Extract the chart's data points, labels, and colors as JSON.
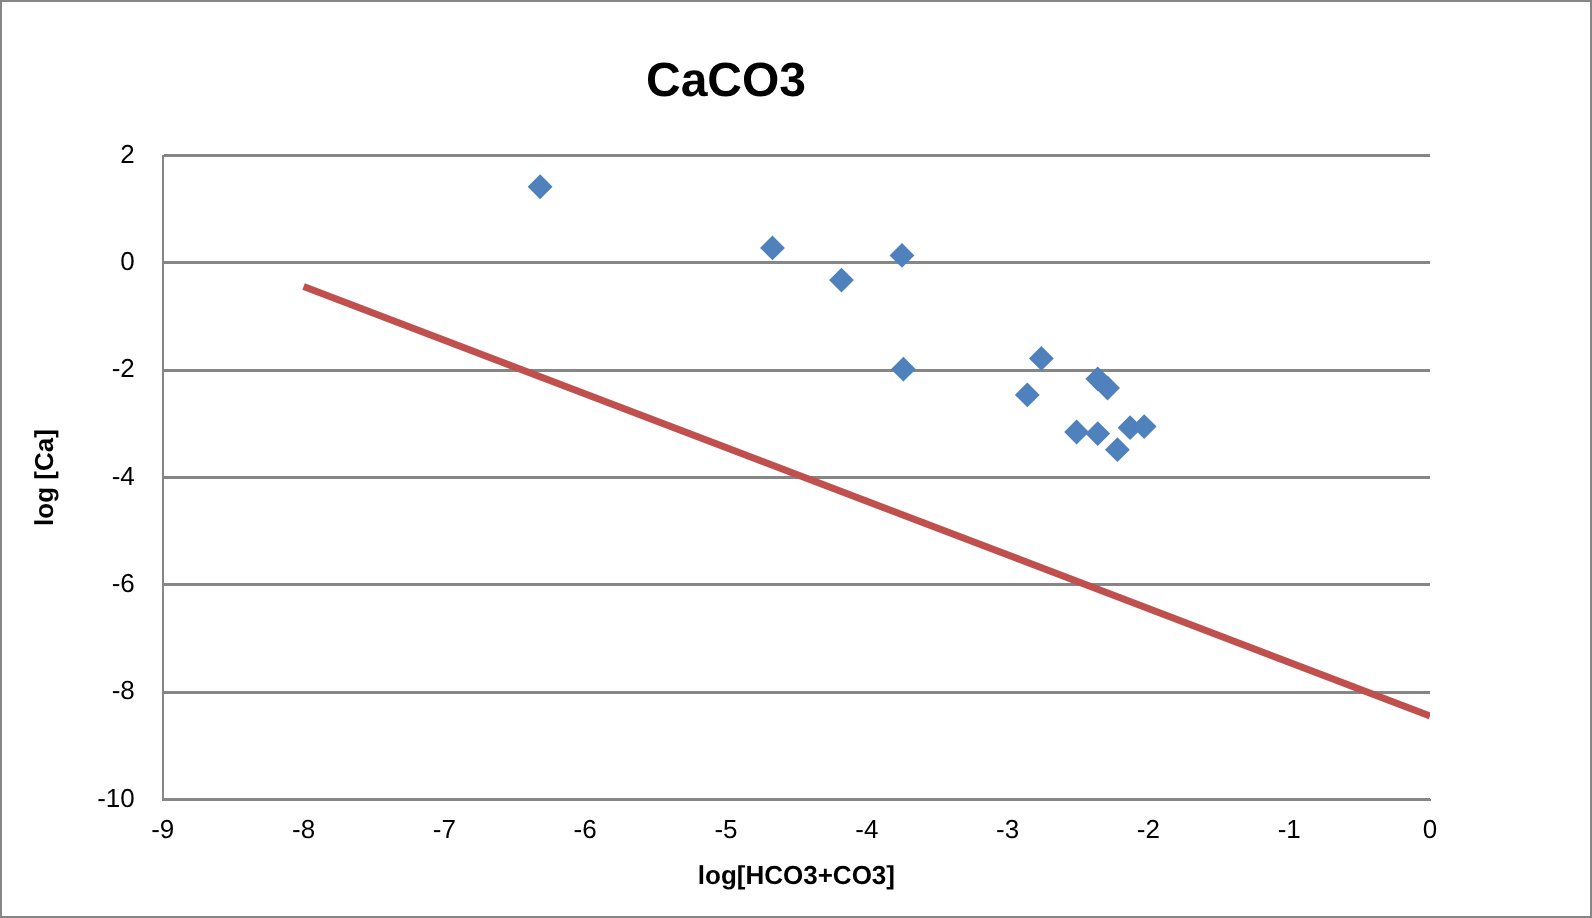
{
  "chart_data": {
    "type": "scatter",
    "title": "CaCO3",
    "xlabel": "log[HCO3+CO3]",
    "ylabel": "log [Ca]",
    "xlim": [
      -9,
      0
    ],
    "xticks": [
      -9,
      -8,
      -7,
      -6,
      -5,
      -4,
      -3,
      -2,
      -1,
      0
    ],
    "ylim": [
      -10,
      2
    ],
    "yticks": [
      -10,
      -8,
      -6,
      -4,
      -2,
      0,
      2
    ],
    "grid": "y",
    "legend": false,
    "series": [
      {
        "marker": "diamond",
        "color": "#4f81bd",
        "x": [
          -6.32,
          -4.67,
          -4.18,
          -3.75,
          -3.74,
          -2.86,
          -2.76,
          -2.51,
          -2.36,
          -2.36,
          -2.29,
          -2.22,
          -2.13,
          -2.03
        ],
        "values": [
          1.42,
          0.28,
          -0.32,
          0.14,
          -1.98,
          -2.46,
          -1.78,
          -3.15,
          -3.18,
          -2.16,
          -2.33,
          -3.48,
          -3.07,
          -3.05
        ]
      },
      {
        "type": "line",
        "marker": "none",
        "color": "#c0504d",
        "x": [
          -8,
          0
        ],
        "values": [
          -0.44,
          -8.44
        ]
      }
    ]
  }
}
